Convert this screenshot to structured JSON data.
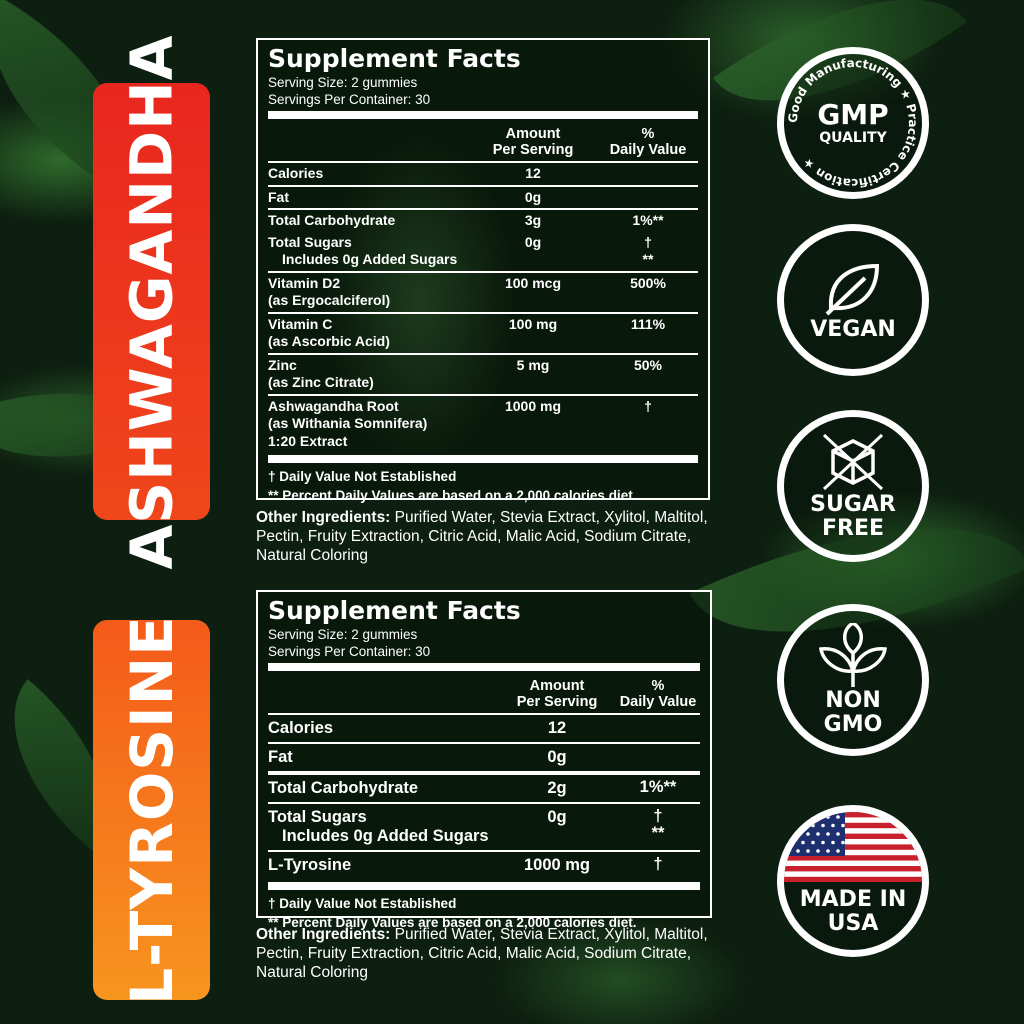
{
  "banners": [
    "ASHWAGANDHA",
    "L-TYROSINE"
  ],
  "colors": {
    "banner1": "#e8261e",
    "banner2": "#f7951e",
    "background": "#0d1f10"
  },
  "panel1": {
    "title": "Supplement Facts",
    "serving_size": "Serving Size: 2 gummies",
    "servings_per_container": "Servings Per Container: 30",
    "header": {
      "amount": [
        "Amount",
        "Per Serving"
      ],
      "dv": [
        "%",
        "Daily Value"
      ]
    },
    "rows": [
      {
        "label": [
          "Calories"
        ],
        "amount": "12",
        "dv": ""
      },
      {
        "label": [
          "Fat"
        ],
        "amount": "0g",
        "dv": ""
      },
      {
        "label": [
          "Total Carbohydrate"
        ],
        "amount": "3g",
        "dv": "1%**"
      },
      {
        "label": [
          "Total Sugars",
          "Includes 0g Added Sugars"
        ],
        "amount": "0g",
        "dv": "†\n**"
      },
      {
        "label": [
          "Vitamin D2",
          "(as Ergocalciferol)"
        ],
        "amount": "100 mcg",
        "dv": "500%"
      },
      {
        "label": [
          "Vitamin C",
          "(as Ascorbic Acid)"
        ],
        "amount": "100 mg",
        "dv": "111%"
      },
      {
        "label": [
          "Zinc",
          "(as Zinc Citrate)"
        ],
        "amount": "5 mg",
        "dv": "50%"
      },
      {
        "label": [
          "Ashwagandha Root",
          "(as Withania Somnifera)",
          "1:20 Extract"
        ],
        "amount": "1000 mg",
        "dv": "†"
      }
    ],
    "footnotes": [
      "† Daily Value Not Established",
      "** Percent Daily Values are based on a 2,000 calories diet."
    ],
    "other_label": "Other Ingredients:",
    "other_text": " Purified Water, Stevia Extract, Xylitol, Maltitol, Pectin, Fruity Extraction, Citric Acid, Malic Acid, Sodium Citrate, Natural Coloring"
  },
  "panel2": {
    "title": "Supplement Facts",
    "serving_size": "Serving Size: 2 gummies",
    "servings_per_container": "Servings Per Container: 30",
    "header": {
      "amount": [
        "Amount",
        "Per Serving"
      ],
      "dv": [
        "%",
        "Daily Value"
      ]
    },
    "rows": [
      {
        "label": [
          "Calories"
        ],
        "amount": "12",
        "dv": ""
      },
      {
        "label": [
          "Fat"
        ],
        "amount": "0g",
        "dv": ""
      },
      {
        "label": [
          "Total Carbohydrate"
        ],
        "amount": "2g",
        "dv": "1%**"
      },
      {
        "label": [
          "Total Sugars",
          "Includes 0g Added Sugars"
        ],
        "amount": "0g",
        "dv": "†\n**"
      },
      {
        "label": [
          "L-Tyrosine"
        ],
        "amount": "1000 mg",
        "dv": "†"
      }
    ],
    "footnotes": [
      "† Daily Value Not Established",
      "** Percent Daily Values are based on a 2,000 calories diet."
    ],
    "other_label": "Other Ingredients:",
    "other_text": " Purified Water, Stevia Extract, Xylitol, Maltitol, Pectin, Fruity Extraction, Citric Acid, Malic Acid, Sodium Citrate, Natural Coloring"
  },
  "badges": [
    {
      "lines": [
        "GMP",
        "QUALITY"
      ],
      "ring_text": "Good Manufacturing ★ Practice Certification ★",
      "icon": "gmp-seal-icon"
    },
    {
      "lines": [
        "VEGAN"
      ],
      "icon": "leaf-icon"
    },
    {
      "lines": [
        "SUGAR",
        "FREE"
      ],
      "icon": "crossed-cube-icon"
    },
    {
      "lines": [
        "NON",
        "GMO"
      ],
      "icon": "sprout-icon"
    },
    {
      "lines": [
        "MADE IN",
        "USA"
      ],
      "icon": "us-flag-icon"
    }
  ]
}
